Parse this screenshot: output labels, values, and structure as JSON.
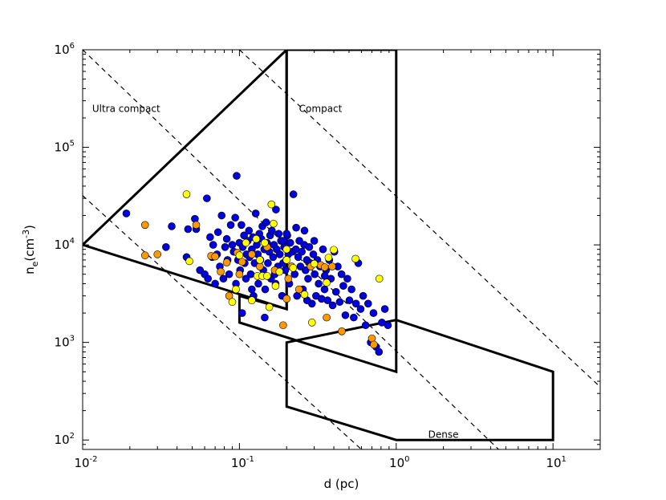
{
  "chart_data": {
    "type": "scatter",
    "title": "",
    "xlabel": "d (pc)",
    "ylabel_base": "n",
    "ylabel_sub": "e",
    "ylabel_unit": "(cm",
    "ylabel_exp": "-3",
    "ylabel_close": ")",
    "x_scale": "log",
    "y_scale": "log",
    "xlim": [
      0.01,
      20
    ],
    "ylim": [
      80,
      1000000
    ],
    "x_ticks": [
      {
        "value": 0.01,
        "base": "10",
        "exp": "-2"
      },
      {
        "value": 0.1,
        "base": "10",
        "exp": "-1"
      },
      {
        "value": 1,
        "base": "10",
        "exp": "0"
      },
      {
        "value": 10,
        "base": "10",
        "exp": "1"
      }
    ],
    "y_ticks": [
      {
        "value": 100,
        "base": "10",
        "exp": "2"
      },
      {
        "value": 1000,
        "base": "10",
        "exp": "3"
      },
      {
        "value": 10000,
        "base": "10",
        "exp": "4"
      },
      {
        "value": 100000,
        "base": "10",
        "exp": "5"
      },
      {
        "value": 1000000,
        "base": "10",
        "exp": "6"
      }
    ],
    "grid": false,
    "legend": "none",
    "annotations": [
      {
        "text": "Ultra compact",
        "x": 0.0115,
        "y": 230000
      },
      {
        "text": "Compact",
        "x": 0.24,
        "y": 230000
      },
      {
        "text": "Dense",
        "x": 1.6,
        "y": 105
      }
    ],
    "regions": [
      {
        "name": "ultra-compact",
        "points": [
          [
            0.01,
            10000
          ],
          [
            0.2,
            2200
          ],
          [
            0.2,
            1000000
          ]
        ]
      },
      {
        "name": "compact",
        "points": [
          [
            0.1,
            3000
          ],
          [
            0.1,
            1600
          ],
          [
            1,
            500
          ],
          [
            1,
            1000000
          ],
          [
            0.2,
            1000000
          ],
          [
            0.2,
            2200
          ]
        ]
      },
      {
        "name": "dense",
        "points": [
          [
            0.2,
            1000
          ],
          [
            0.2,
            220
          ],
          [
            1,
            100
          ],
          [
            10,
            100
          ],
          [
            10,
            500
          ],
          [
            1,
            1700
          ]
        ]
      }
    ],
    "dashed_lines": [
      {
        "points": [
          [
            0.01,
            32000
          ],
          [
            0.6,
            80
          ]
        ]
      },
      {
        "points": [
          [
            0.01,
            1000000
          ],
          [
            4.5,
            80
          ]
        ]
      },
      {
        "points": [
          [
            0.1,
            1000000
          ],
          [
            20,
            350
          ]
        ]
      }
    ],
    "series": [
      {
        "color": "#0000dd",
        "points": [
          [
            0.019,
            21000
          ],
          [
            0.034,
            9500
          ],
          [
            0.037,
            15500
          ],
          [
            0.046,
            7500
          ],
          [
            0.047,
            14500
          ],
          [
            0.052,
            18500
          ],
          [
            0.053,
            14500
          ],
          [
            0.056,
            5500
          ],
          [
            0.06,
            5000
          ],
          [
            0.062,
            30000
          ],
          [
            0.063,
            4500
          ],
          [
            0.065,
            12000
          ],
          [
            0.067,
            7500
          ],
          [
            0.068,
            10000
          ],
          [
            0.07,
            4000
          ],
          [
            0.072,
            8000
          ],
          [
            0.073,
            13500
          ],
          [
            0.075,
            6000
          ],
          [
            0.077,
            20000
          ],
          [
            0.079,
            4500
          ],
          [
            0.081,
            9500
          ],
          [
            0.083,
            11500
          ],
          [
            0.084,
            7000
          ],
          [
            0.086,
            5000
          ],
          [
            0.088,
            16000
          ],
          [
            0.09,
            10000
          ],
          [
            0.092,
            8500
          ],
          [
            0.094,
            19000
          ],
          [
            0.095,
            4000
          ],
          [
            0.096,
            51000
          ],
          [
            0.098,
            7000
          ],
          [
            0.1,
            10500
          ],
          [
            0.101,
            5500
          ],
          [
            0.103,
            16000
          ],
          [
            0.104,
            2000
          ],
          [
            0.105,
            9500
          ],
          [
            0.107,
            12500
          ],
          [
            0.108,
            6500
          ],
          [
            0.11,
            4500
          ],
          [
            0.111,
            8000
          ],
          [
            0.113,
            11000
          ],
          [
            0.115,
            14000
          ],
          [
            0.116,
            7500
          ],
          [
            0.118,
            5000
          ],
          [
            0.12,
            9000
          ],
          [
            0.122,
            12000
          ],
          [
            0.123,
            3000
          ],
          [
            0.125,
            6500
          ],
          [
            0.127,
            21000
          ],
          [
            0.129,
            10000
          ],
          [
            0.131,
            8000
          ],
          [
            0.132,
            4000
          ],
          [
            0.134,
            13000
          ],
          [
            0.136,
            7000
          ],
          [
            0.138,
            11500
          ],
          [
            0.14,
            15500
          ],
          [
            0.142,
            5500
          ],
          [
            0.144,
            9000
          ],
          [
            0.146,
            3500
          ],
          [
            0.148,
            17000
          ],
          [
            0.15,
            10500
          ],
          [
            0.152,
            6500
          ],
          [
            0.155,
            8500
          ],
          [
            0.157,
            12500
          ],
          [
            0.159,
            4500
          ],
          [
            0.161,
            14000
          ],
          [
            0.164,
            7500
          ],
          [
            0.166,
            10000
          ],
          [
            0.168,
            5000
          ],
          [
            0.171,
            23000
          ],
          [
            0.173,
            9000
          ],
          [
            0.176,
            6000
          ],
          [
            0.178,
            13000
          ],
          [
            0.181,
            8000
          ],
          [
            0.184,
            11000
          ],
          [
            0.187,
            3000
          ],
          [
            0.19,
            6500
          ],
          [
            0.193,
            9500
          ],
          [
            0.196,
            5500
          ],
          [
            0.199,
            7000
          ],
          [
            0.202,
            12500
          ],
          [
            0.205,
            8000
          ],
          [
            0.208,
            4000
          ],
          [
            0.211,
            10500
          ],
          [
            0.215,
            6000
          ],
          [
            0.218,
            8500
          ],
          [
            0.221,
            33000
          ],
          [
            0.225,
            5000
          ],
          [
            0.229,
            9000
          ],
          [
            0.233,
            3000
          ],
          [
            0.237,
            7500
          ],
          [
            0.241,
            11000
          ],
          [
            0.245,
            6000
          ],
          [
            0.25,
            8500
          ],
          [
            0.254,
            3500
          ],
          [
            0.259,
            10000
          ],
          [
            0.264,
            5500
          ],
          [
            0.269,
            7000
          ],
          [
            0.274,
            4500
          ],
          [
            0.279,
            9500
          ],
          [
            0.284,
            6500
          ],
          [
            0.29,
            2500
          ],
          [
            0.296,
            8000
          ],
          [
            0.302,
            5000
          ],
          [
            0.308,
            3000
          ],
          [
            0.314,
            7000
          ],
          [
            0.32,
            4000
          ],
          [
            0.327,
            6000
          ],
          [
            0.334,
            2800
          ],
          [
            0.341,
            9000
          ],
          [
            0.349,
            3500
          ],
          [
            0.357,
            5500
          ],
          [
            0.365,
            2700
          ],
          [
            0.374,
            7000
          ],
          [
            0.383,
            4500
          ],
          [
            0.393,
            2400
          ],
          [
            0.403,
            8500
          ],
          [
            0.413,
            3300
          ],
          [
            0.424,
            6000
          ],
          [
            0.436,
            2600
          ],
          [
            0.448,
            5000
          ],
          [
            0.46,
            3800
          ],
          [
            0.474,
            1900
          ],
          [
            0.488,
            4500
          ],
          [
            0.503,
            2700
          ],
          [
            0.519,
            3500
          ],
          [
            0.536,
            1800
          ],
          [
            0.554,
            2500
          ],
          [
            0.573,
            6500
          ],
          [
            0.593,
            2200
          ],
          [
            0.615,
            3000
          ],
          [
            0.638,
            1500
          ],
          [
            0.662,
            2500
          ],
          [
            0.688,
            1000
          ],
          [
            0.716,
            2000
          ],
          [
            0.745,
            900
          ],
          [
            0.776,
            800
          ],
          [
            0.81,
            1600
          ],
          [
            0.846,
            2200
          ],
          [
            0.885,
            1500
          ],
          [
            0.12,
            3500
          ],
          [
            0.145,
            1800
          ],
          [
            0.17,
            4000
          ],
          [
            0.2,
            13000
          ],
          [
            0.23,
            15000
          ],
          [
            0.26,
            14000
          ],
          [
            0.3,
            11000
          ],
          [
            0.35,
            4800
          ],
          [
            0.27,
            2700
          ],
          [
            0.19,
            11000
          ]
        ]
      },
      {
        "color": "#ff9900",
        "points": [
          [
            0.025,
            16000
          ],
          [
            0.025,
            7800
          ],
          [
            0.03,
            8000
          ],
          [
            0.053,
            16000
          ],
          [
            0.066,
            7700
          ],
          [
            0.07,
            7600
          ],
          [
            0.076,
            5300
          ],
          [
            0.083,
            6600
          ],
          [
            0.086,
            3000
          ],
          [
            0.097,
            8300
          ],
          [
            0.1,
            5000
          ],
          [
            0.104,
            6700
          ],
          [
            0.12,
            8000
          ],
          [
            0.135,
            6000
          ],
          [
            0.15,
            9500
          ],
          [
            0.168,
            5500
          ],
          [
            0.19,
            1500
          ],
          [
            0.2,
            2800
          ],
          [
            0.205,
            4500
          ],
          [
            0.215,
            6000
          ],
          [
            0.24,
            3500
          ],
          [
            0.285,
            6000
          ],
          [
            0.33,
            6200
          ],
          [
            0.35,
            5900
          ],
          [
            0.36,
            1800
          ],
          [
            0.39,
            6000
          ],
          [
            0.45,
            1300
          ],
          [
            0.7,
            1100
          ],
          [
            0.72,
            950
          ]
        ]
      },
      {
        "color": "#ffff00",
        "points": [
          [
            0.046,
            33000
          ],
          [
            0.048,
            6800
          ],
          [
            0.09,
            2600
          ],
          [
            0.095,
            3500
          ],
          [
            0.1,
            7800
          ],
          [
            0.11,
            10500
          ],
          [
            0.12,
            2700
          ],
          [
            0.128,
            11500
          ],
          [
            0.13,
            4800
          ],
          [
            0.14,
            4800
          ],
          [
            0.145,
            10500
          ],
          [
            0.15,
            4800
          ],
          [
            0.155,
            2300
          ],
          [
            0.16,
            26000
          ],
          [
            0.165,
            16500
          ],
          [
            0.17,
            3800
          ],
          [
            0.18,
            5300
          ],
          [
            0.2,
            7000
          ],
          [
            0.22,
            5800
          ],
          [
            0.26,
            3100
          ],
          [
            0.29,
            1600
          ],
          [
            0.3,
            6400
          ],
          [
            0.36,
            4100
          ],
          [
            0.37,
            7400
          ],
          [
            0.4,
            8900
          ],
          [
            0.55,
            7200
          ],
          [
            0.78,
            4500
          ],
          [
            0.135,
            7000
          ],
          [
            0.2,
            9000
          ]
        ]
      }
    ]
  }
}
